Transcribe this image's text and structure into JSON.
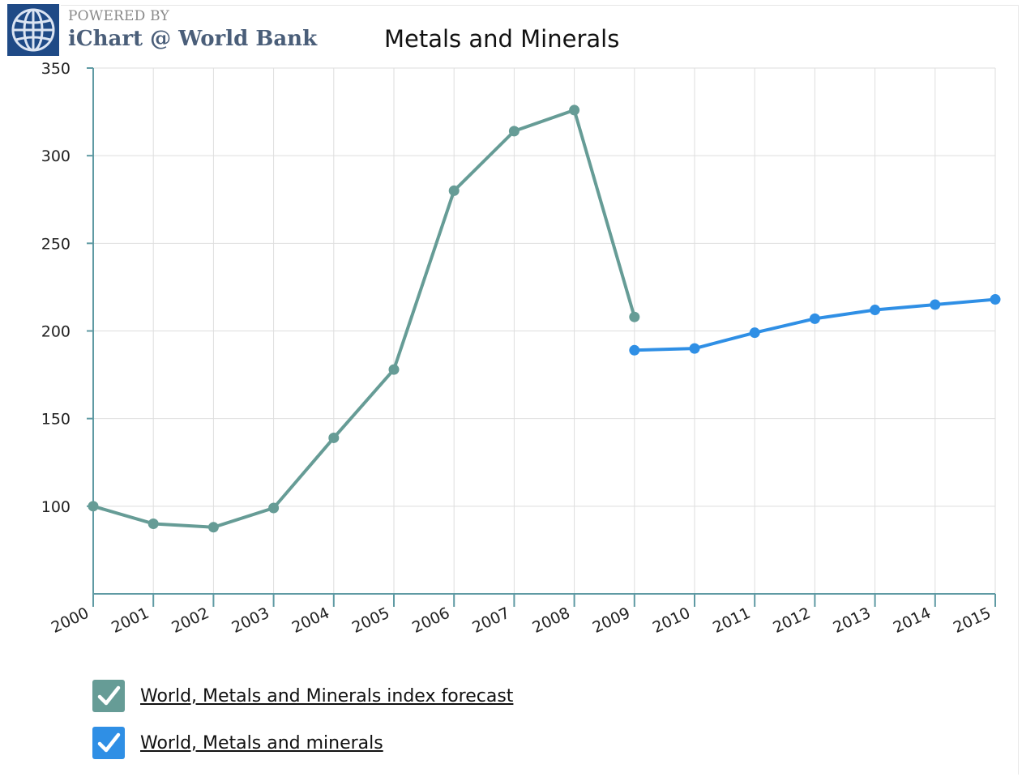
{
  "branding": {
    "powered_by": "POWERED BY",
    "name": "iChart @ World Bank"
  },
  "chart_data": {
    "type": "line",
    "title": "Metals and Minerals",
    "xlabel": "",
    "ylabel": "",
    "x": [
      "2000",
      "2001",
      "2002",
      "2003",
      "2004",
      "2005",
      "2006",
      "2007",
      "2008",
      "2009",
      "2010",
      "2011",
      "2012",
      "2013",
      "2014",
      "2015"
    ],
    "y_ticks": [
      "350",
      "300",
      "250",
      "200",
      "150",
      "100"
    ],
    "ylim": [
      50,
      350
    ],
    "grid": true,
    "legend_placement": "bottom",
    "series": [
      {
        "name": "World, Metals and Minerals index forecast",
        "color": "#669c96",
        "x": [
          "2000",
          "2001",
          "2002",
          "2003",
          "2004",
          "2005",
          "2006",
          "2007",
          "2008",
          "2009"
        ],
        "values": [
          100,
          90,
          88,
          99,
          139,
          178,
          280,
          314,
          326,
          208
        ]
      },
      {
        "name": "World, Metals and minerals",
        "color": "#2f8fe5",
        "x": [
          "2009",
          "2010",
          "2011",
          "2012",
          "2013",
          "2014",
          "2015"
        ],
        "values": [
          189,
          190,
          199,
          207,
          212,
          215,
          218
        ]
      }
    ]
  }
}
